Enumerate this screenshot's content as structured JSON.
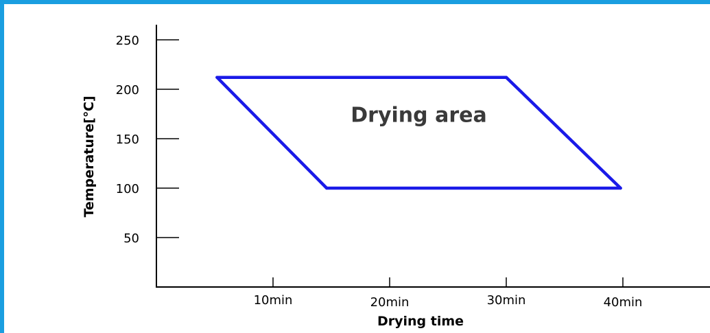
{
  "chart_data": {
    "type": "area",
    "title": "",
    "xlabel": "Drying time",
    "ylabel": "Temperature[℃]",
    "xlim": [
      0,
      50
    ],
    "ylim": [
      0,
      270
    ],
    "x_ticks": [
      {
        "value": 10,
        "label": "10min"
      },
      {
        "value": 20,
        "label": "20min"
      },
      {
        "value": 30,
        "label": "30min"
      },
      {
        "value": 40,
        "label": "40min"
      }
    ],
    "y_ticks": [
      {
        "value": 50,
        "label": "50"
      },
      {
        "value": 100,
        "label": "100"
      },
      {
        "value": 150,
        "label": "150"
      },
      {
        "value": 200,
        "label": "200"
      },
      {
        "value": 250,
        "label": "250"
      }
    ],
    "series": [
      {
        "values": [
          {
            "x": 5.2,
            "y": 212
          },
          {
            "x": 30,
            "y": 212
          },
          {
            "x": 39.8,
            "y": 100
          },
          {
            "x": 14.6,
            "y": 100
          }
        ],
        "color": "#1a1ae8"
      }
    ],
    "annotations": [
      {
        "text": "Drying area",
        "x": 22.5,
        "y": 175
      }
    ],
    "grid": false
  },
  "colors": {
    "frame": "#1a9ee0",
    "area_outline": "#1a1ae8",
    "annotation": "#3a3a3a"
  }
}
